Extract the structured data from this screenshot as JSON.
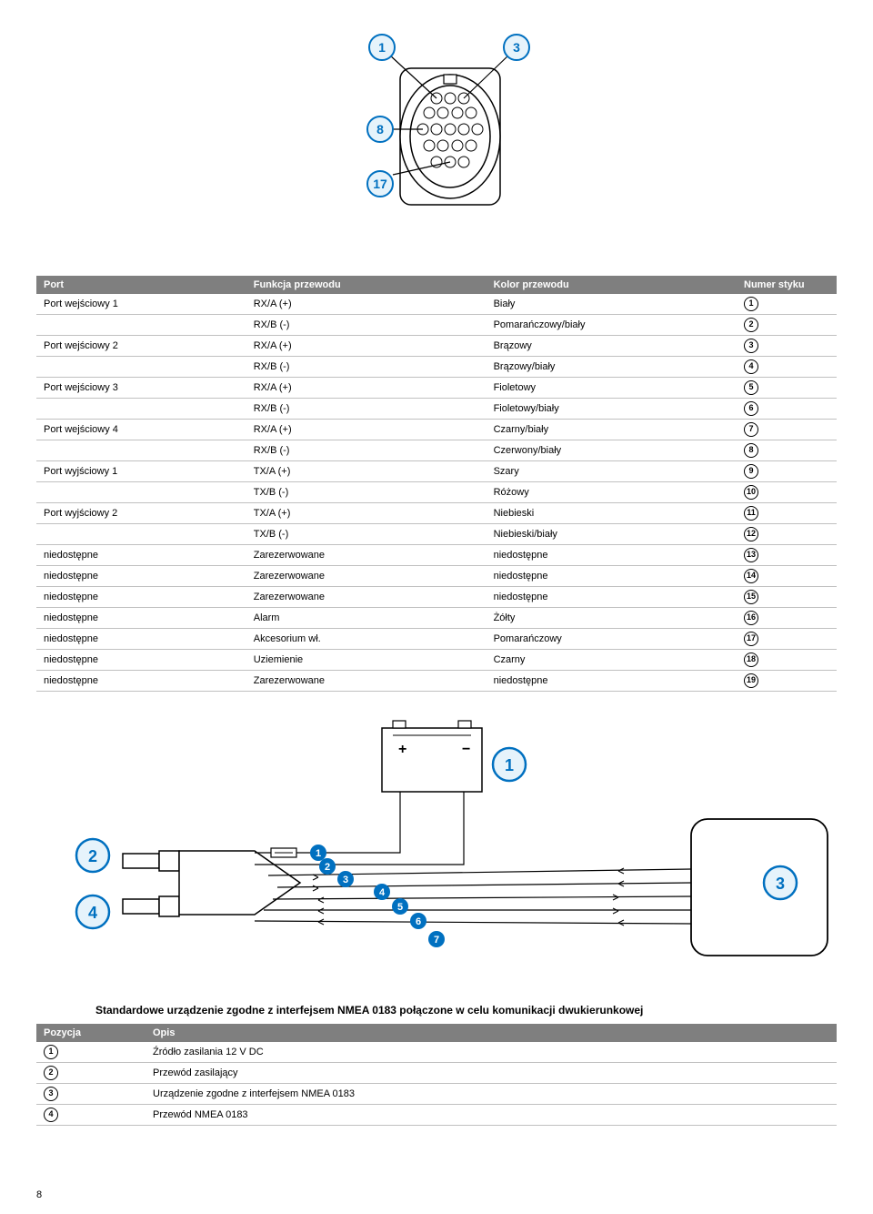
{
  "tableMain": {
    "headers": [
      "Port",
      "Funkcja przewodu",
      "Kolor przewodu",
      "Numer styku"
    ],
    "rows": [
      {
        "port": "Port wejściowy 1",
        "func": "RX/A (+)",
        "color": "Biały",
        "pin": "1"
      },
      {
        "port": "",
        "func": "RX/B (-)",
        "color": "Pomarańczowy/biały",
        "pin": "2"
      },
      {
        "port": "Port wejściowy 2",
        "func": "RX/A (+)",
        "color": "Brązowy",
        "pin": "3"
      },
      {
        "port": "",
        "func": "RX/B (-)",
        "color": "Brązowy/biały",
        "pin": "4"
      },
      {
        "port": "Port wejściowy 3",
        "func": "RX/A (+)",
        "color": "Fioletowy",
        "pin": "5"
      },
      {
        "port": "",
        "func": "RX/B (-)",
        "color": "Fioletowy/biały",
        "pin": "6"
      },
      {
        "port": "Port wejściowy 4",
        "func": "RX/A (+)",
        "color": "Czarny/biały",
        "pin": "7"
      },
      {
        "port": "",
        "func": "RX/B (-)",
        "color": "Czerwony/biały",
        "pin": "8"
      },
      {
        "port": "Port wyjściowy 1",
        "func": "TX/A (+)",
        "color": "Szary",
        "pin": "9"
      },
      {
        "port": "",
        "func": "TX/B (-)",
        "color": "Różowy",
        "pin": "10"
      },
      {
        "port": "Port wyjściowy 2",
        "func": "TX/A (+)",
        "color": "Niebieski",
        "pin": "11"
      },
      {
        "port": "",
        "func": "TX/B (-)",
        "color": "Niebieski/biały",
        "pin": "12"
      },
      {
        "port": "niedostępne",
        "func": "Zarezerwowane",
        "color": "niedostępne",
        "pin": "13"
      },
      {
        "port": "niedostępne",
        "func": "Zarezerwowane",
        "color": "niedostępne",
        "pin": "14"
      },
      {
        "port": "niedostępne",
        "func": "Zarezerwowane",
        "color": "niedostępne",
        "pin": "15"
      },
      {
        "port": "niedostępne",
        "func": "Alarm",
        "color": "Żółty",
        "pin": "16"
      },
      {
        "port": "niedostępne",
        "func": "Akcesorium wł.",
        "color": "Pomarańczowy",
        "pin": "17"
      },
      {
        "port": "niedostępne",
        "func": "Uziemienie",
        "color": "Czarny",
        "pin": "18"
      },
      {
        "port": "niedostępne",
        "func": "Zarezerwowane",
        "color": "niedostępne",
        "pin": "19"
      }
    ]
  },
  "caption": "Standardowe urządzenie zgodne z interfejsem NMEA 0183 połączone w celu komunikacji dwukierunkowej",
  "tableDesc": {
    "headers": [
      "Pozycja",
      "Opis"
    ],
    "rows": [
      {
        "pos": "1",
        "desc": "Źródło zasilania 12 V DC"
      },
      {
        "pos": "2",
        "desc": "Przewód zasilający"
      },
      {
        "pos": "3",
        "desc": "Urządzenie zgodne z interfejsem NMEA 0183"
      },
      {
        "pos": "4",
        "desc": "Przewód NMEA 0183"
      }
    ]
  },
  "diagTop": {
    "callouts": [
      "1",
      "3",
      "8",
      "17"
    ],
    "callout_bg": "#e6f3fb",
    "callout_border": "#0070c0",
    "callout_text": "#0070c0"
  },
  "diagMid": {
    "outer_callouts": [
      "1",
      "2",
      "3",
      "4"
    ],
    "inner_callouts": [
      "1",
      "2",
      "3",
      "4",
      "5",
      "6",
      "7"
    ],
    "outer_bg": "#e6f3fb",
    "outer_border": "#0070c0",
    "outer_text": "#0070c0",
    "inner_bg": "#0070c0",
    "inner_text": "#ffffff"
  },
  "pageNum": "8"
}
